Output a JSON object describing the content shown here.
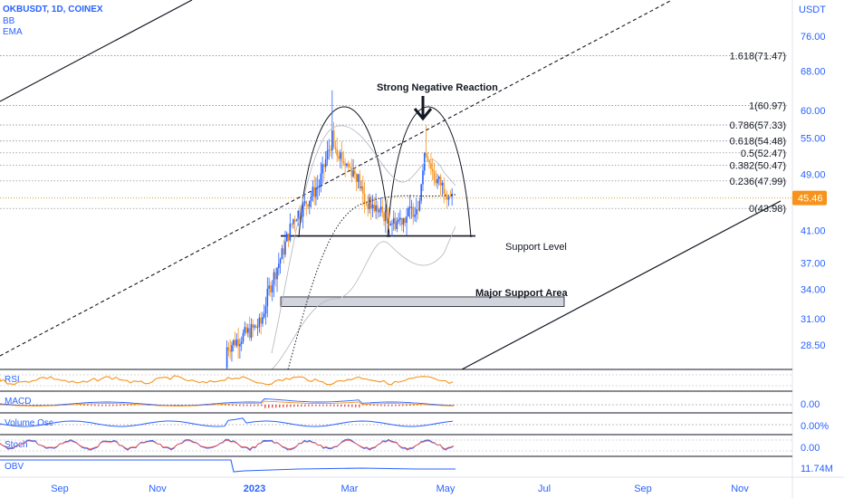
{
  "header": {
    "symbol": "OKBUSDT, 1D, COINEX",
    "indicator1": "BB",
    "indicator2": "EMA"
  },
  "colors": {
    "accent": "#2962ff",
    "up": "#2962ff",
    "down": "#f7931a",
    "price_line": "#f7931a",
    "rsi": "#f7931a",
    "text": "#131722",
    "grid": "#b2b5be"
  },
  "chart_data": {
    "type": "candlestick",
    "price_axis_unit": "USDT",
    "y_scale": "log",
    "y_ticks": [
      "76.00",
      "68.00",
      "60.00",
      "55.00",
      "49.00",
      "45.46",
      "41.00",
      "37.00",
      "34.00",
      "31.00",
      "28.50"
    ],
    "x_ticks": [
      "Sep",
      "Nov",
      "2023",
      "Mar",
      "May",
      "Jul",
      "Sep",
      "Nov"
    ],
    "last_price": 45.46,
    "fib_levels": [
      {
        "label": "1.618(71.47)",
        "value": 71.47
      },
      {
        "label": "1(60.97)",
        "value": 60.97
      },
      {
        "label": "0.786(57.33)",
        "value": 57.33
      },
      {
        "label": "0.618(54.48)",
        "value": 54.48
      },
      {
        "label": "0.5(52.47)",
        "value": 52.47
      },
      {
        "label": "0.382(50.47)",
        "value": 50.47
      },
      {
        "label": "0.236(47.99)",
        "value": 47.99
      },
      {
        "label": "0(43.98)",
        "value": 43.98
      }
    ],
    "annotations": [
      {
        "text": "Strong Negative Reaction"
      },
      {
        "text": "Support Level",
        "value": 40.3
      },
      {
        "text": "Major Support Area",
        "from": 32.2,
        "to": 33.2
      }
    ],
    "candles_close_approx": [
      {
        "date": "2022-12",
        "open": 27.0,
        "close": 28.3
      },
      {
        "date": "2023-01-05",
        "close": 30.5
      },
      {
        "date": "2023-01-10",
        "close": 34.0
      },
      {
        "date": "2023-01-18",
        "close": 38.0
      },
      {
        "date": "2023-01-25",
        "close": 42.5
      },
      {
        "date": "2023-02-01",
        "close": 44.5
      },
      {
        "date": "2023-02-10",
        "close": 47.5
      },
      {
        "date": "2023-02-18",
        "high": 64.0,
        "close": 55.0
      },
      {
        "date": "2023-02-25",
        "close": 51.0
      },
      {
        "date": "2023-03-05",
        "close": 49.0
      },
      {
        "date": "2023-03-10",
        "close": 45.0
      },
      {
        "date": "2023-03-20",
        "close": 43.5
      },
      {
        "date": "2023-03-28",
        "close": 42.0
      },
      {
        "date": "2023-04-05",
        "close": 43.0
      },
      {
        "date": "2023-04-12",
        "close": 44.5
      },
      {
        "date": "2023-04-17",
        "high": 57.3,
        "close": 53.0
      },
      {
        "date": "2023-04-22",
        "close": 48.5
      },
      {
        "date": "2023-04-28",
        "close": 47.0
      },
      {
        "date": "2023-05-03",
        "close": 45.46
      }
    ],
    "panes": [
      {
        "name": "RSI"
      },
      {
        "name": "MACD",
        "value_label": "0.00"
      },
      {
        "name": "Volume Osc",
        "value_label": "0.00%"
      },
      {
        "name": "Stoch",
        "value_label": "0.00"
      },
      {
        "name": "OBV",
        "value_label": "11.74M"
      }
    ]
  }
}
